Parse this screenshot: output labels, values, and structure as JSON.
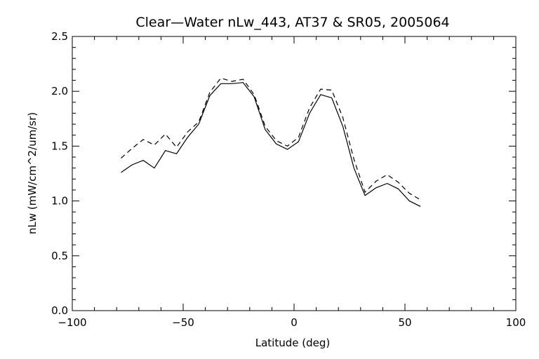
{
  "chart_data": {
    "type": "line",
    "title": "Clear—Water nLw_443, AT37 & SR05, 2005064",
    "xlabel": "Latitude (deg)",
    "ylabel": "nLw (mW/cm^2/um/sr)",
    "xlim": [
      -100,
      100
    ],
    "ylim": [
      0.0,
      2.5
    ],
    "x_ticks": [
      -100,
      -50,
      0,
      50,
      100
    ],
    "x_tick_labels": [
      "−100",
      "−50",
      "0",
      "50",
      "100"
    ],
    "y_ticks": [
      0.0,
      0.5,
      1.0,
      1.5,
      2.0,
      2.5
    ],
    "y_tick_labels": [
      "0.0",
      "0.5",
      "1.0",
      "1.5",
      "2.0",
      "2.5"
    ],
    "grid": false,
    "series": [
      {
        "style": "solid",
        "x": [
          -78,
          -73,
          -68,
          -63,
          -58,
          -53,
          -48,
          -43,
          -38,
          -33,
          -28,
          -23,
          -18,
          -13,
          -8,
          -3,
          2,
          7,
          12,
          17,
          22,
          27,
          32,
          37,
          42,
          47,
          52,
          57
        ],
        "y": [
          1.26,
          1.33,
          1.37,
          1.3,
          1.46,
          1.43,
          1.58,
          1.7,
          1.96,
          2.07,
          2.07,
          2.08,
          1.95,
          1.65,
          1.52,
          1.47,
          1.54,
          1.8,
          1.97,
          1.94,
          1.68,
          1.3,
          1.05,
          1.12,
          1.16,
          1.11,
          1.0,
          0.95
        ]
      },
      {
        "style": "dashed",
        "x": [
          -78,
          -73,
          -68,
          -63,
          -58,
          -53,
          -48,
          -43,
          -38,
          -33,
          -28,
          -23,
          -18,
          -13,
          -8,
          -3,
          2,
          7,
          12,
          17,
          22,
          27,
          32,
          37,
          42,
          47,
          52,
          57
        ],
        "y": [
          1.39,
          1.48,
          1.56,
          1.51,
          1.61,
          1.49,
          1.63,
          1.72,
          1.99,
          2.12,
          2.09,
          2.11,
          1.97,
          1.68,
          1.55,
          1.5,
          1.58,
          1.85,
          2.02,
          2.01,
          1.76,
          1.38,
          1.08,
          1.18,
          1.24,
          1.17,
          1.07,
          1.01
        ]
      }
    ]
  }
}
